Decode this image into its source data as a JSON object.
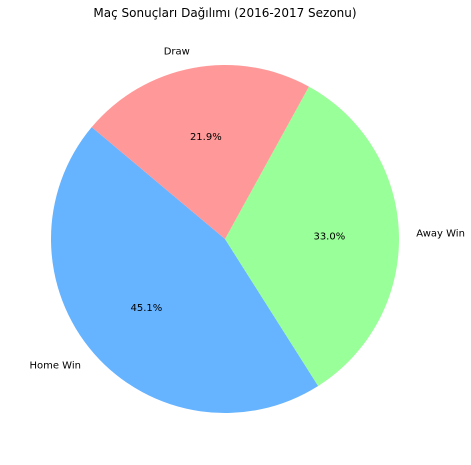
{
  "chart_data": {
    "type": "pie",
    "title": "Maç Sonuçları Dağılımı (2016-2017 Sezonu)",
    "slices": [
      {
        "label": "Home Win",
        "value": 45.1,
        "pct_label": "45.1%",
        "color": "#66b3ff"
      },
      {
        "label": "Away Win",
        "value": 33.0,
        "pct_label": "33.0%",
        "color": "#99ff99"
      },
      {
        "label": "Draw",
        "value": 21.9,
        "pct_label": "21.9%",
        "color": "#ff9999"
      }
    ],
    "start_angle_deg": 140,
    "direction": "counterclockwise"
  }
}
